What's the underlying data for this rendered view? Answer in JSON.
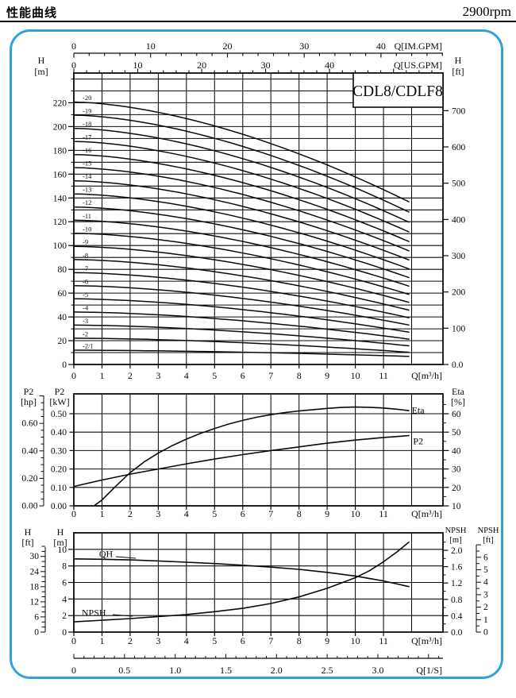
{
  "page": {
    "title": "性能曲线",
    "rpm": "2900rpm"
  },
  "colors": {
    "panel_border": "#2fa3d9",
    "ink": "#0a0a0a",
    "background": "#ffffff"
  },
  "chart_data": [
    {
      "id": "head_capacity",
      "type": "line",
      "title": "CDL8/CDLF8",
      "x_axis": {
        "label": "Q[m³/h]",
        "ticks": [
          "0",
          "1",
          "2",
          "3",
          "4",
          "5",
          "6",
          "7",
          "8",
          "9",
          "10",
          "11"
        ],
        "max": 13.1,
        "grid_step": 1
      },
      "x_axis_im": {
        "label": "Q[IM.GPM]",
        "ticks": [
          "0",
          "10",
          "20",
          "30",
          "40"
        ],
        "units_per_m3h": 3.666
      },
      "x_axis_us": {
        "label": "Q[US.GPM]",
        "ticks": [
          "0",
          "10",
          "20",
          "30",
          "40"
        ],
        "units_per_m3h": 4.403
      },
      "y_left": {
        "title": [
          "H",
          "[m]"
        ],
        "ticks": [
          "0",
          "20",
          "40",
          "60",
          "80",
          "100",
          "120",
          "140",
          "160",
          "180",
          "200",
          "220"
        ],
        "max": 245,
        "grid_step": 10
      },
      "y_right": {
        "title": [
          "H",
          "[ft]"
        ],
        "ticks": [
          "0.0",
          "100",
          "200",
          "300",
          "400",
          "500",
          "600",
          "700"
        ],
        "m_per_ft": 0.3048
      },
      "q_end": 11.9,
      "curve_shape_exponent": 1.65,
      "stages": [
        {
          "label": "-20",
          "shutoff_head_m": 220.6,
          "head_at_qend_m": 136.8
        },
        {
          "label": "-19",
          "shutoff_head_m": 209.6,
          "head_at_qend_m": 128.2
        },
        {
          "label": "-18",
          "shutoff_head_m": 198.5,
          "head_at_qend_m": 119.7
        },
        {
          "label": "-17",
          "shutoff_head_m": 187.5,
          "head_at_qend_m": 111.5
        },
        {
          "label": "-16",
          "shutoff_head_m": 176.5,
          "head_at_qend_m": 103.4
        },
        {
          "label": "-15",
          "shutoff_head_m": 165.5,
          "head_at_qend_m": 95.6
        },
        {
          "label": "-14",
          "shutoff_head_m": 154.4,
          "head_at_qend_m": 87.9
        },
        {
          "label": "-13",
          "shutoff_head_m": 143.4,
          "head_at_qend_m": 80.4
        },
        {
          "label": "-12",
          "shutoff_head_m": 132.4,
          "head_at_qend_m": 73.1
        },
        {
          "label": "-11",
          "shutoff_head_m": 121.3,
          "head_at_qend_m": 65.9
        },
        {
          "label": "-10",
          "shutoff_head_m": 110.3,
          "head_at_qend_m": 59.0
        },
        {
          "label": "-9",
          "shutoff_head_m": 99.3,
          "head_at_qend_m": 52.3
        },
        {
          "label": "-8",
          "shutoff_head_m": 88.2,
          "head_at_qend_m": 45.7
        },
        {
          "label": "-7",
          "shutoff_head_m": 77.2,
          "head_at_qend_m": 39.3
        },
        {
          "label": "-6",
          "shutoff_head_m": 66.2,
          "head_at_qend_m": 33.2
        },
        {
          "label": "-5",
          "shutoff_head_m": 55.2,
          "head_at_qend_m": 27.2
        },
        {
          "label": "-4",
          "shutoff_head_m": 44.1,
          "head_at_qend_m": 21.3
        },
        {
          "label": "-3",
          "shutoff_head_m": 33.1,
          "head_at_qend_m": 15.7
        },
        {
          "label": "-2",
          "shutoff_head_m": 22.1,
          "head_at_qend_m": 10.3
        },
        {
          "label": "-2/1",
          "shutoff_head_m": 12.0,
          "head_at_qend_m": 6.8
        }
      ]
    },
    {
      "id": "power_efficiency",
      "type": "line",
      "x_axis": {
        "label": "Q[m³/h]",
        "ticks": [
          "0",
          "1",
          "2",
          "3",
          "4",
          "5",
          "6",
          "7",
          "8",
          "9",
          "10",
          "11"
        ]
      },
      "y_hp": {
        "title": [
          "P2",
          "[hp]"
        ],
        "ticks": [
          "0.00",
          "0.20",
          "0.40",
          "0.60"
        ],
        "kw_per_hp": 0.7457
      },
      "y_kw": {
        "title": [
          "P2",
          "[kW]"
        ],
        "ticks": [
          "0.00",
          "0.10",
          "0.20",
          "0.30",
          "0.40",
          "0.50"
        ],
        "grid_step": 0.1
      },
      "y_eta": {
        "title": [
          "Eta",
          "[%]"
        ],
        "ticks": [
          "10",
          "20",
          "30",
          "40",
          "50",
          "60"
        ]
      },
      "series": [
        {
          "name": "P2",
          "axis": "kw",
          "label_at": [
            12.25,
            0.352
          ],
          "points": [
            [
              0,
              0.105
            ],
            [
              1,
              0.14
            ],
            [
              2,
              0.172
            ],
            [
              3,
              0.2
            ],
            [
              4,
              0.228
            ],
            [
              5,
              0.254
            ],
            [
              6,
              0.278
            ],
            [
              7,
              0.3
            ],
            [
              8,
              0.32
            ],
            [
              9,
              0.34
            ],
            [
              10,
              0.357
            ],
            [
              11,
              0.371
            ],
            [
              11.9,
              0.381
            ]
          ]
        },
        {
          "name": "Eta",
          "axis": "eta",
          "label_at": [
            12.2,
            62.0
          ],
          "points": [
            [
              0.72,
              10
            ],
            [
              1,
              13.2
            ],
            [
              1.5,
              20.8
            ],
            [
              2,
              28
            ],
            [
              2.5,
              33.9
            ],
            [
              3,
              38.6
            ],
            [
              3.5,
              42.7
            ],
            [
              4,
              46.2
            ],
            [
              4.5,
              49.3
            ],
            [
              5,
              52
            ],
            [
              5.5,
              54.4
            ],
            [
              6,
              56.4
            ],
            [
              6.5,
              58.1
            ],
            [
              7,
              59.5
            ],
            [
              7.5,
              60.6
            ],
            [
              8,
              61.5
            ],
            [
              8.5,
              62.2
            ],
            [
              9,
              62.9
            ],
            [
              9.5,
              63.4
            ],
            [
              10,
              63.6
            ],
            [
              10.5,
              63.5
            ],
            [
              11,
              63.1
            ],
            [
              11.5,
              62.4
            ],
            [
              11.9,
              61.7
            ]
          ]
        }
      ]
    },
    {
      "id": "qh_npsh",
      "type": "line",
      "x_axis": {
        "label": "Q[m³/h]",
        "ticks": [
          "0",
          "1",
          "2",
          "3",
          "4",
          "5",
          "6",
          "7",
          "8",
          "9",
          "10",
          "11"
        ]
      },
      "x_axis_ls": {
        "label": "Q[1/S]",
        "ticks": [
          "0",
          "0.5",
          "1.0",
          "1.5",
          "2.0",
          "2.5",
          "3.0"
        ],
        "m3h_per_ls": 3.6
      },
      "y_ft": {
        "title": [
          "H",
          "[ft]"
        ],
        "ticks": [
          "0",
          "6",
          "12",
          "18",
          "24",
          "30"
        ],
        "m_per_ft": 0.3048
      },
      "y_m": {
        "title": [
          "H",
          "[m]"
        ],
        "ticks": [
          "0",
          "2",
          "4",
          "6",
          "8",
          "10"
        ],
        "max": 12,
        "grid_step": 2
      },
      "y_npsh_m": {
        "title": [
          "NPSH",
          "[m]"
        ],
        "ticks": [
          "0.0",
          "0.4",
          "0.8",
          "1.2",
          "1.6",
          "2.0"
        ]
      },
      "y_npsh_ft": {
        "title": [
          "NPSH",
          "[ft]"
        ],
        "ticks": [
          "0",
          "1",
          "2",
          "3",
          "4",
          "5",
          "6"
        ]
      },
      "series": [
        {
          "name": "QH",
          "axis": "m",
          "label_at": [
            0.9,
            9.35
          ],
          "points": [
            [
              0,
              8.85
            ],
            [
              1,
              8.8
            ],
            [
              2,
              8.73
            ],
            [
              3,
              8.6
            ],
            [
              4,
              8.45
            ],
            [
              5,
              8.28
            ],
            [
              6,
              8.08
            ],
            [
              7,
              7.85
            ],
            [
              8,
              7.58
            ],
            [
              9,
              7.22
            ],
            [
              10,
              6.78
            ],
            [
              11,
              6.18
            ],
            [
              11.9,
              5.5
            ]
          ]
        },
        {
          "name": "NPSH",
          "axis": "npsh",
          "label_at": [
            0.28,
            0.46
          ],
          "points": [
            [
              0,
              0.25
            ],
            [
              1,
              0.29
            ],
            [
              2,
              0.33
            ],
            [
              3,
              0.38
            ],
            [
              4,
              0.43
            ],
            [
              5,
              0.5
            ],
            [
              6,
              0.58
            ],
            [
              7,
              0.7
            ],
            [
              8,
              0.86
            ],
            [
              9,
              1.07
            ],
            [
              10,
              1.33
            ],
            [
              10.5,
              1.5
            ],
            [
              11,
              1.72
            ],
            [
              11.5,
              1.97
            ],
            [
              11.9,
              2.2
            ]
          ]
        }
      ]
    }
  ]
}
